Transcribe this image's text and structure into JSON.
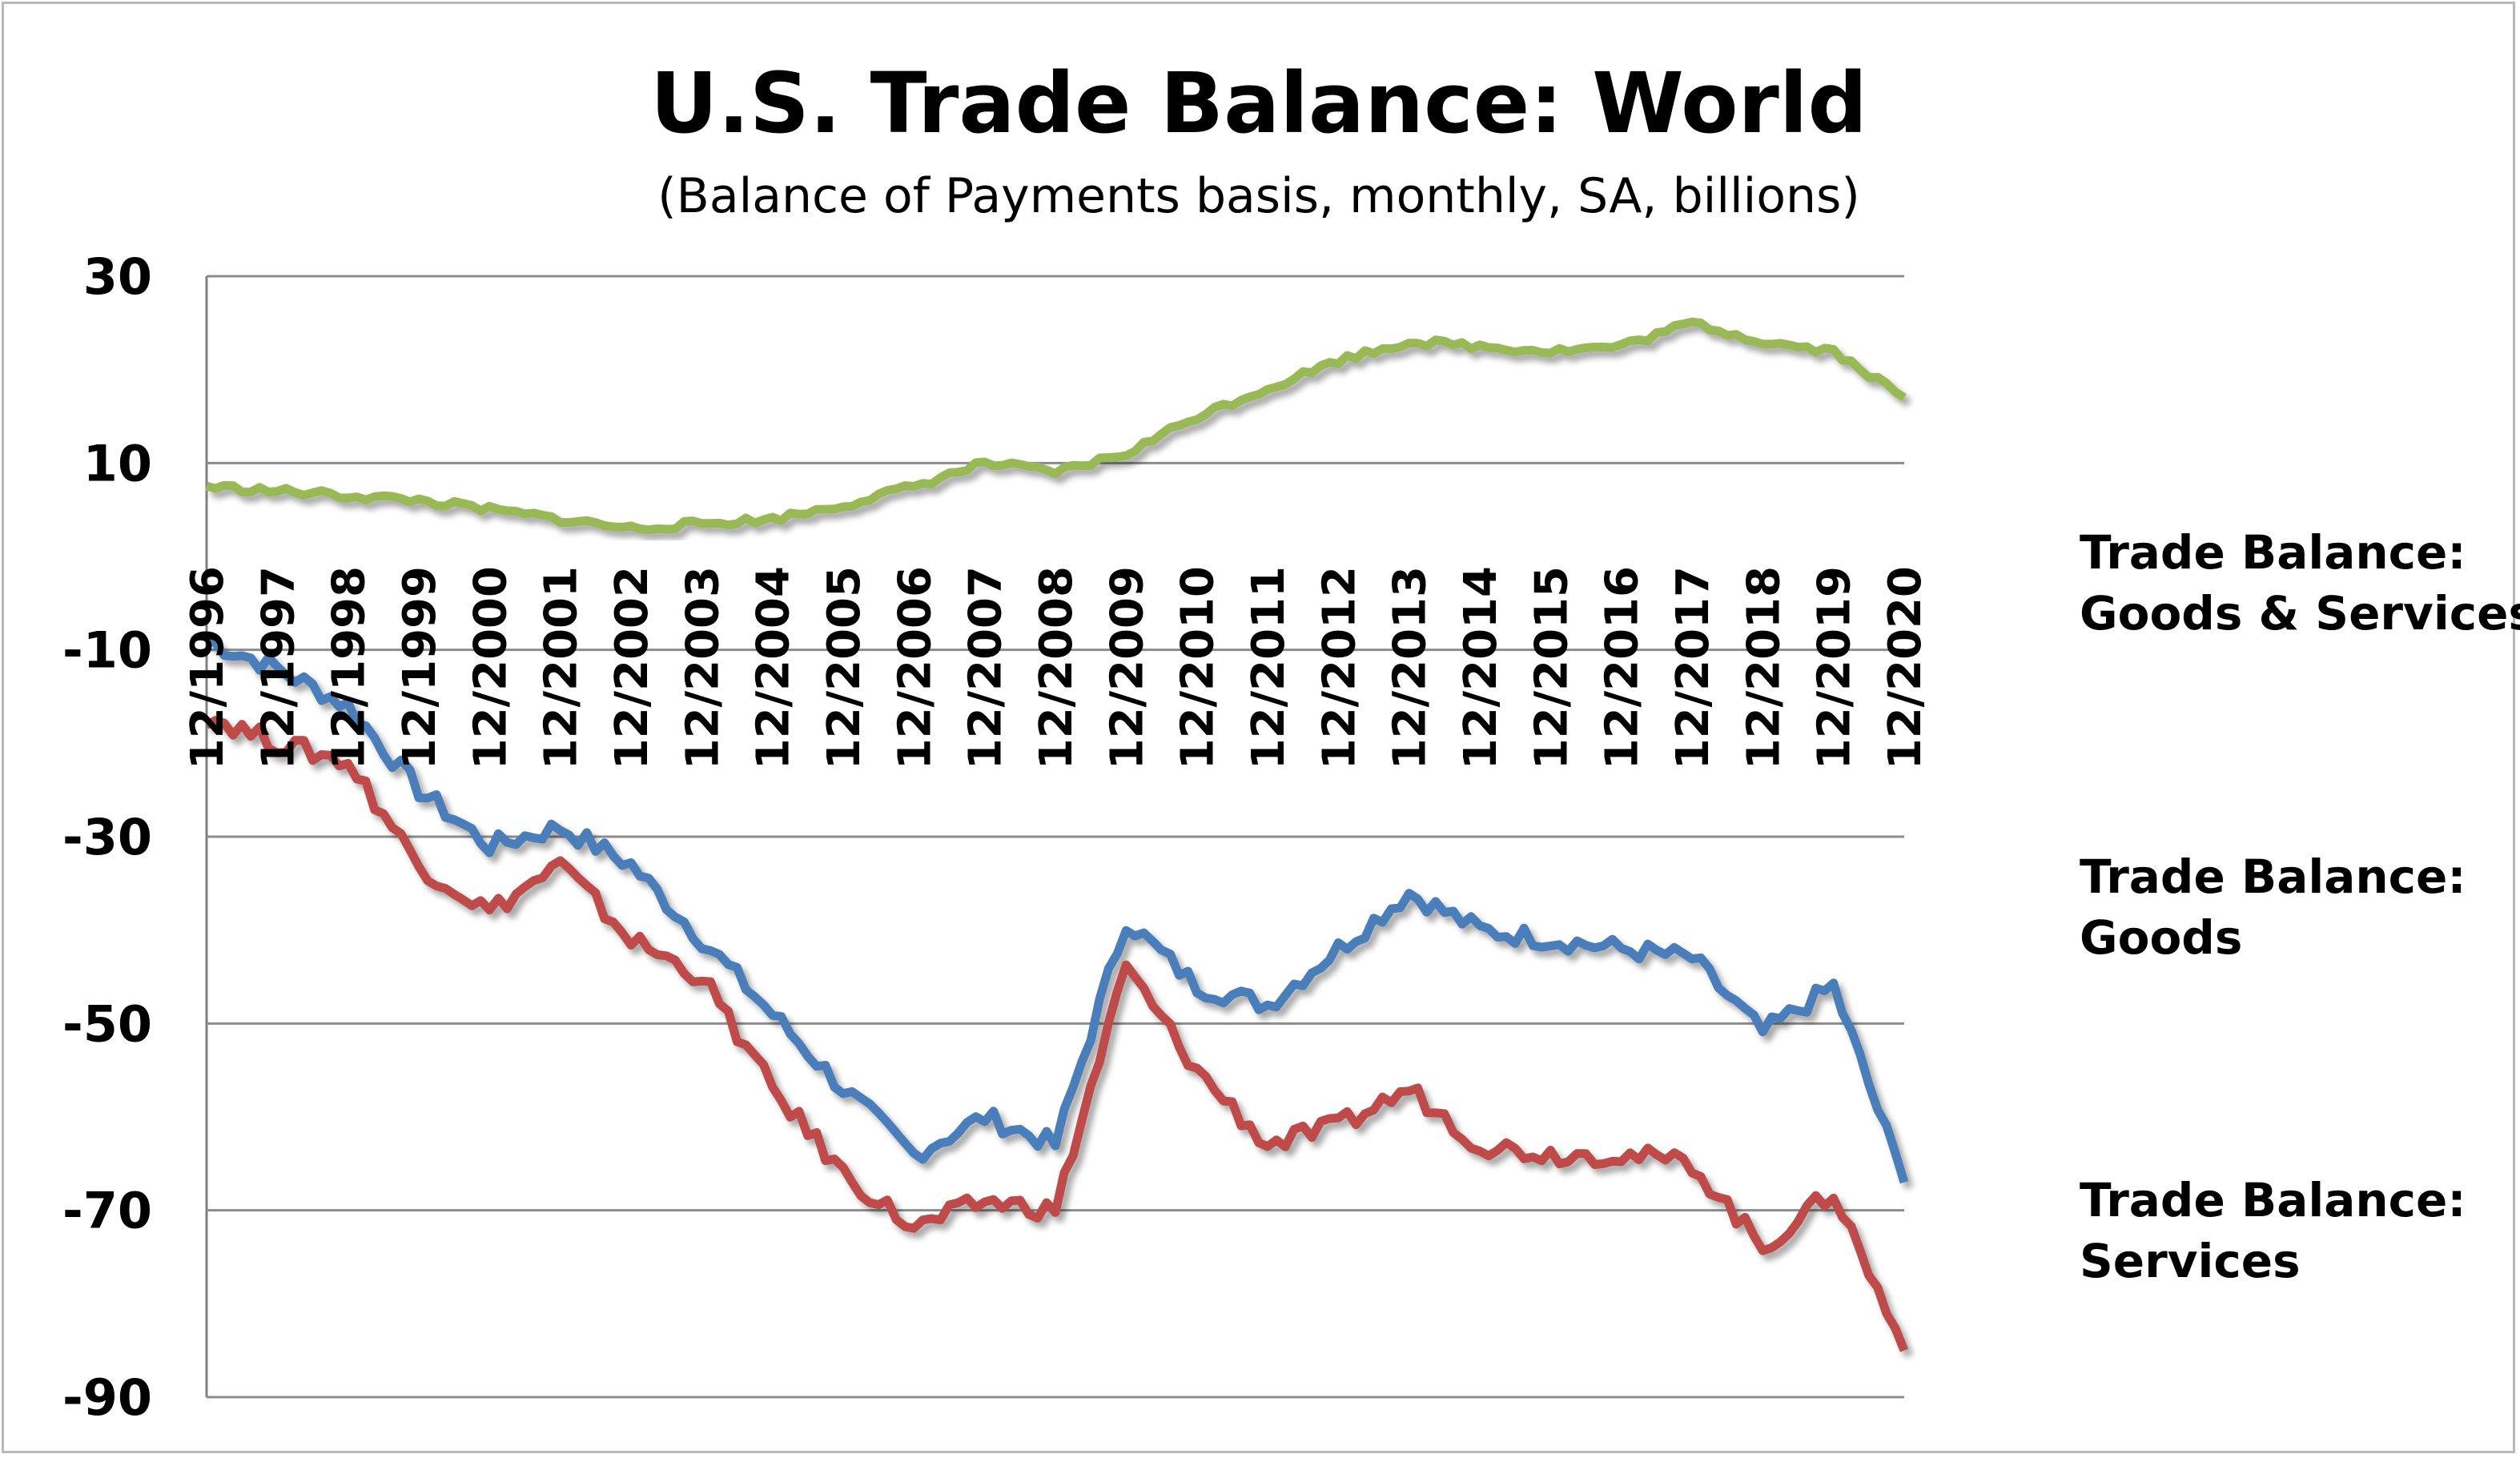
{
  "chart_data": {
    "type": "line",
    "title": "U.S. Trade Balance: World",
    "subtitle": "(Balance of Payments basis, monthly, SA, billions)",
    "xlabel": "",
    "ylabel": "",
    "ylim": [
      -90,
      30
    ],
    "yticks": [
      "30",
      "10",
      "-10",
      "-30",
      "-50",
      "-70",
      "-90"
    ],
    "ytick_values": [
      30,
      10,
      -10,
      -30,
      -50,
      -70,
      -90
    ],
    "grid": "horizontal",
    "legend_position": "right",
    "x": [
      "12/1996",
      "12/1997",
      "12/1998",
      "12/1999",
      "12/2000",
      "12/2001",
      "12/2002",
      "12/2003",
      "12/2004",
      "12/2005",
      "12/2006",
      "12/2007",
      "12/2008",
      "12/2009",
      "12/2010",
      "12/2011",
      "12/2012",
      "12/2013",
      "12/2014",
      "12/2015",
      "12/2016",
      "12/2017",
      "12/2018",
      "12/2019",
      "12/2020"
    ],
    "series": [
      {
        "name": "Trade Balance: Goods & Services",
        "legend_lines": [
          "Trade Balance:",
          "Goods & Services"
        ],
        "color": "#4a7ebb",
        "values": [
          -9,
          -12,
          -16,
          -25,
          -31,
          -29,
          -33,
          -41,
          -49,
          -57,
          -64,
          -60,
          -63,
          -39,
          -46,
          -48,
          -42,
          -36,
          -40,
          -41,
          -42,
          -43,
          -51,
          -46,
          -67
        ]
      },
      {
        "name": "Trade Balance: Goods",
        "legend_lines": [
          "Trade Balance:",
          "Goods"
        ],
        "color": "#be4b48",
        "values": [
          -17,
          -20,
          -22,
          -33,
          -38,
          -33,
          -41,
          -45,
          -57,
          -66,
          -72,
          -69,
          -70,
          -44,
          -55,
          -63,
          -61,
          -57,
          -63,
          -64,
          -64,
          -65,
          -74,
          -68,
          -85
        ]
      },
      {
        "name": "Trade Balance: Services",
        "legend_lines": [
          "Trade Balance:",
          "Services"
        ],
        "color": "#98b954",
        "values": [
          7.5,
          7,
          6.5,
          6,
          5,
          4,
          3,
          3.5,
          4,
          5.5,
          7.5,
          10,
          9,
          11,
          15,
          18,
          21,
          23,
          22.5,
          22,
          22.5,
          25,
          23,
          22,
          17
        ]
      }
    ]
  }
}
